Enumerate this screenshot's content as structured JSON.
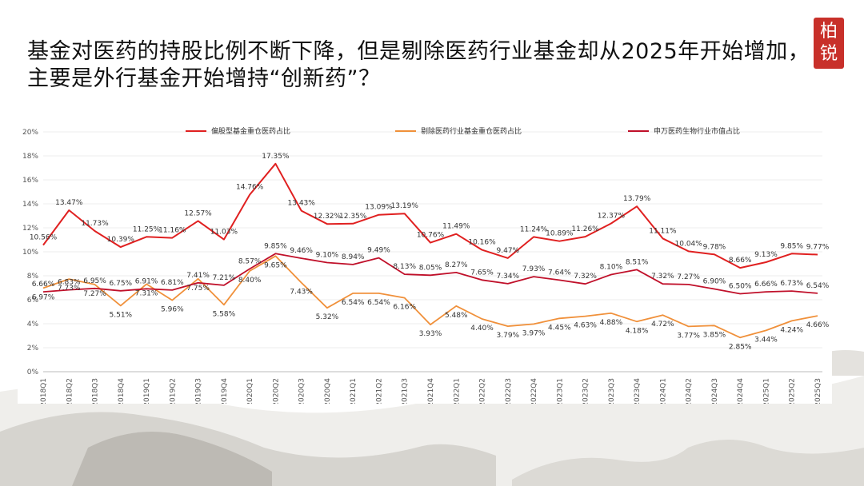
{
  "title": {
    "line1": "基金对医药的持股比例不断下降，但是剔除医药行业基金却从2025年开始增加，",
    "line2": "主要是外行基金开始增持“创新药”？"
  },
  "seal": {
    "char1": "柏",
    "char2": "锐"
  },
  "colors": {
    "series1": "#e02020",
    "series2": "#f0903a",
    "series3": "#c0102a"
  },
  "chart_data": {
    "type": "line",
    "categories": [
      "2018Q1",
      "2018Q2",
      "2018Q3",
      "2018Q4",
      "2019Q1",
      "2019Q2",
      "2019Q3",
      "2019Q4",
      "2020Q1",
      "2020Q2",
      "2020Q3",
      "2020Q4",
      "2021Q1",
      "2021Q2",
      "2021Q3",
      "2021Q4",
      "2022Q1",
      "2022Q2",
      "2022Q3",
      "2022Q4",
      "2023Q1",
      "2023Q2",
      "2023Q3",
      "2023Q4",
      "2024Q1",
      "2024Q2",
      "2024Q3",
      "2024Q4",
      "2025Q1",
      "2025Q2",
      "2025Q3"
    ],
    "ylim": [
      0,
      20
    ],
    "yticks": [
      "0%",
      "2%",
      "4%",
      "6%",
      "8%",
      "10%",
      "12%",
      "14%",
      "16%",
      "18%",
      "20%"
    ],
    "series": [
      {
        "name": "偏股型基金重仓医药占比",
        "values": [
          10.56,
          13.47,
          11.73,
          10.39,
          11.25,
          11.16,
          12.57,
          11.03,
          14.76,
          17.35,
          13.43,
          12.32,
          12.35,
          13.09,
          13.19,
          10.76,
          11.49,
          10.16,
          9.47,
          11.24,
          10.89,
          11.26,
          12.37,
          13.79,
          11.11,
          10.04,
          9.78,
          8.66,
          9.13,
          9.85,
          9.77
        ],
        "labels": [
          "10.56%",
          "13.47%",
          "11.73%",
          "10.39%",
          "11.25%",
          "11.16%",
          "12.57%",
          "11.03%",
          "14.76%",
          "17.35%",
          "13.43%",
          "12.32%",
          "12.35%",
          "13.09%",
          "13.19%",
          "10.76%",
          "11.49%",
          "10.16%",
          "9.47%",
          "11.24%",
          "10.89%",
          "11.26%",
          "12.37%",
          "13.79%",
          "11.11%",
          "10.04%",
          "9.78%",
          "8.66%",
          "9.13%",
          "9.85%",
          "9.77%"
        ]
      },
      {
        "name": "剔除医药行业基金重仓医药占比",
        "values": [
          6.97,
          7.73,
          7.27,
          5.51,
          7.31,
          5.96,
          7.75,
          5.58,
          8.4,
          9.65,
          7.43,
          5.32,
          6.54,
          6.54,
          6.16,
          3.93,
          5.48,
          4.4,
          3.79,
          3.97,
          4.45,
          4.63,
          4.88,
          4.18,
          4.72,
          3.77,
          3.85,
          2.85,
          3.44,
          4.24,
          4.66
        ],
        "labels": [
          "6.97%",
          "7.73%",
          "7.27%",
          "5.51%",
          "7.31%",
          "5.96%",
          "7.75%",
          "5.58%",
          "8.40%",
          "9.65%",
          "7.43%",
          "5.32%",
          "6.54%",
          "6.54%",
          "6.16%",
          "3.93%",
          "5.48%",
          "4.40%",
          "3.79%",
          "3.97%",
          "4.45%",
          "4.63%",
          "4.88%",
          "4.18%",
          "4.72%",
          "3.77%",
          "3.85%",
          "2.85%",
          "3.44%",
          "4.24%",
          "4.66%"
        ]
      },
      {
        "name": "申万医药生物行业市值占比",
        "values": [
          6.66,
          6.83,
          6.95,
          6.75,
          6.91,
          6.81,
          7.41,
          7.21,
          8.57,
          9.85,
          9.46,
          9.1,
          8.94,
          9.49,
          8.13,
          8.05,
          8.27,
          7.65,
          7.34,
          7.93,
          7.64,
          7.32,
          8.1,
          8.51,
          7.32,
          7.27,
          6.9,
          6.5,
          6.66,
          6.73,
          6.54
        ],
        "labels": [
          "6.66%",
          "6.83%",
          "6.95%",
          "6.75%",
          "6.91%",
          "6.81%",
          "7.41%",
          "7.21%",
          "8.57%",
          "9.85%",
          "9.46%",
          "9.10%",
          "8.94%",
          "9.49%",
          "8.13%",
          "8.05%",
          "8.27%",
          "7.65%",
          "7.34%",
          "7.93%",
          "7.64%",
          "7.32%",
          "8.10%",
          "8.51%",
          "7.32%",
          "7.27%",
          "6.90%",
          "6.50%",
          "6.66%",
          "6.73%",
          "6.54%"
        ]
      }
    ]
  }
}
